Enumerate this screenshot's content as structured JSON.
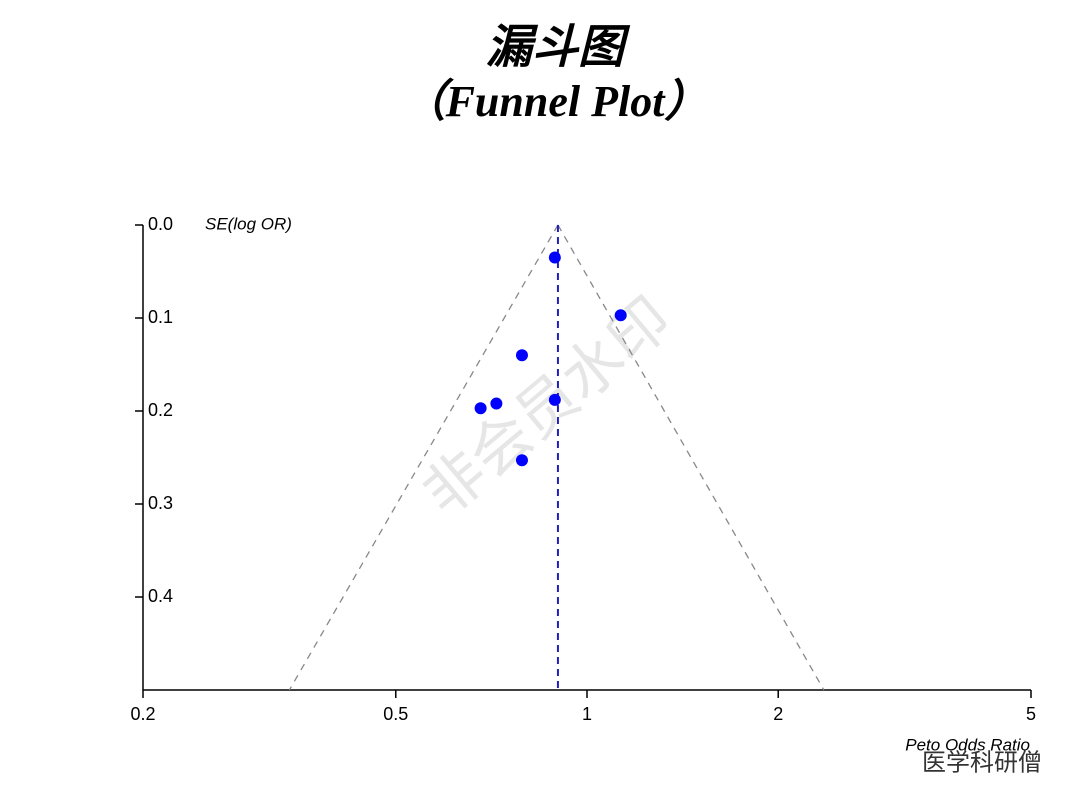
{
  "chart_data": {
    "type": "scatter",
    "title": "漏斗图",
    "subtitle": "（Funnel Plot）",
    "y_label": "SE(log OR)",
    "x_label": "Peto Odds Ratio",
    "watermark": "非会员水印",
    "brand": "医学科研僧",
    "x_log": true,
    "y_inverted": true,
    "xlim": [
      0.2,
      5
    ],
    "xticks": [
      0.2,
      0.5,
      1,
      2,
      5
    ],
    "ylim": [
      0,
      0.5
    ],
    "yticks": [
      {
        "value": 0,
        "label": "0.0"
      },
      0.1,
      0.2,
      0.3,
      0.4
    ],
    "color": "#0000ff",
    "x": [
      0.89,
      1.13,
      0.79,
      0.89,
      0.72,
      0.68,
      0.79
    ],
    "values": [
      0.035,
      0.097,
      0.14,
      0.188,
      0.192,
      0.197,
      0.253
    ],
    "reference_line": {
      "x": 0.9,
      "color": "#1f1fbf"
    },
    "funnel": {
      "color": "#888888",
      "se": [
        0,
        0.5
      ],
      "lower": [
        0.9,
        0.34
      ],
      "upper": [
        0.9,
        2.36
      ]
    }
  }
}
